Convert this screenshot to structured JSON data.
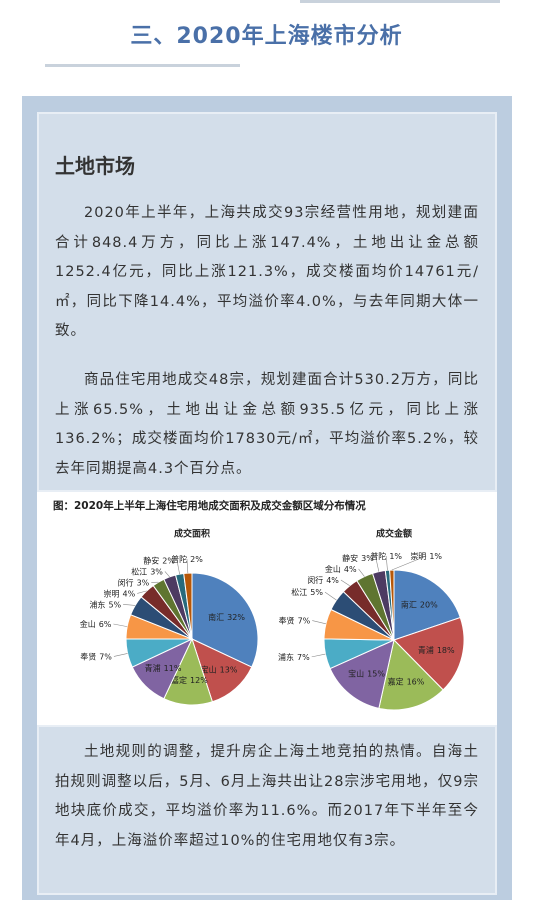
{
  "header": {
    "title": "三、2020年上海楼市分析"
  },
  "section": {
    "title": "土地市场",
    "paragraphs": [
      "2020年上半年，上海共成交93宗经营性用地，规划建面合计848.4万方，同比上涨147.4%，土地出让金总额1252.4亿元，同比上涨121.3%，成交楼面均价14761元/㎡，同比下降14.4%，平均溢价率4.0%，与去年同期大体一致。",
      "商品住宅用地成交48宗，规划建面合计530.2万方，同比上涨65.5%，土地出让金总额935.5亿元，同比上涨136.2%；成交楼面均价17830元/㎡，平均溢价率5.2%，较去年同期提高4.3个百分点。"
    ]
  },
  "figure": {
    "caption": "图：2020年上半年上海住宅用地成交面积及成交金额区域分布情况"
  },
  "chart_data": [
    {
      "type": "pie",
      "title": "成交面积",
      "categories": [
        "南汇",
        "宝山",
        "嘉定",
        "青浦",
        "奉贤",
        "金山",
        "浦东",
        "崇明",
        "闵行",
        "松江",
        "静安",
        "普陀"
      ],
      "values": [
        32,
        13,
        12,
        11,
        7,
        6,
        5,
        4,
        3,
        3,
        2,
        2
      ],
      "value_labels": [
        "32%",
        "13%",
        "12%",
        "11%",
        "7%",
        "6%",
        "5%",
        "4%",
        "3%",
        "3%",
        "2%",
        "2%"
      ],
      "colors": [
        "#4f81bd",
        "#c0504d",
        "#9bbb59",
        "#8064a2",
        "#4bacc6",
        "#f79646",
        "#2c4d75",
        "#772c2a",
        "#5f7530",
        "#4d3b62",
        "#276a7c",
        "#b65708"
      ]
    },
    {
      "type": "pie",
      "title": "成交金额",
      "categories": [
        "南汇",
        "青浦",
        "嘉定",
        "宝山",
        "浦东",
        "奉贤",
        "松江",
        "闵行",
        "金山",
        "静安",
        "普陀",
        "崇明"
      ],
      "values": [
        20,
        18,
        16,
        15,
        7,
        7,
        5,
        4,
        4,
        3,
        1,
        1
      ],
      "value_labels": [
        "20%",
        "18%",
        "16%",
        "15%",
        "7%",
        "7%",
        "5%",
        "4%",
        "4%",
        "3%",
        "1%",
        "1%"
      ],
      "colors": [
        "#4f81bd",
        "#c0504d",
        "#9bbb59",
        "#8064a2",
        "#4bacc6",
        "#f79646",
        "#2c4d75",
        "#772c2a",
        "#5f7530",
        "#4d3b62",
        "#276a7c",
        "#b65708"
      ]
    }
  ],
  "closing": {
    "paragraph": "土地规则的调整，提升房企上海土地竞拍的热情。自海土拍规则调整以后，5月、6月上海共出让28宗涉宅用地，仅9宗地块底价成交，平均溢价率为11.6%。而2017年下半年至今年4月，上海溢价率超过10%的住宅用地仅有3宗。"
  }
}
